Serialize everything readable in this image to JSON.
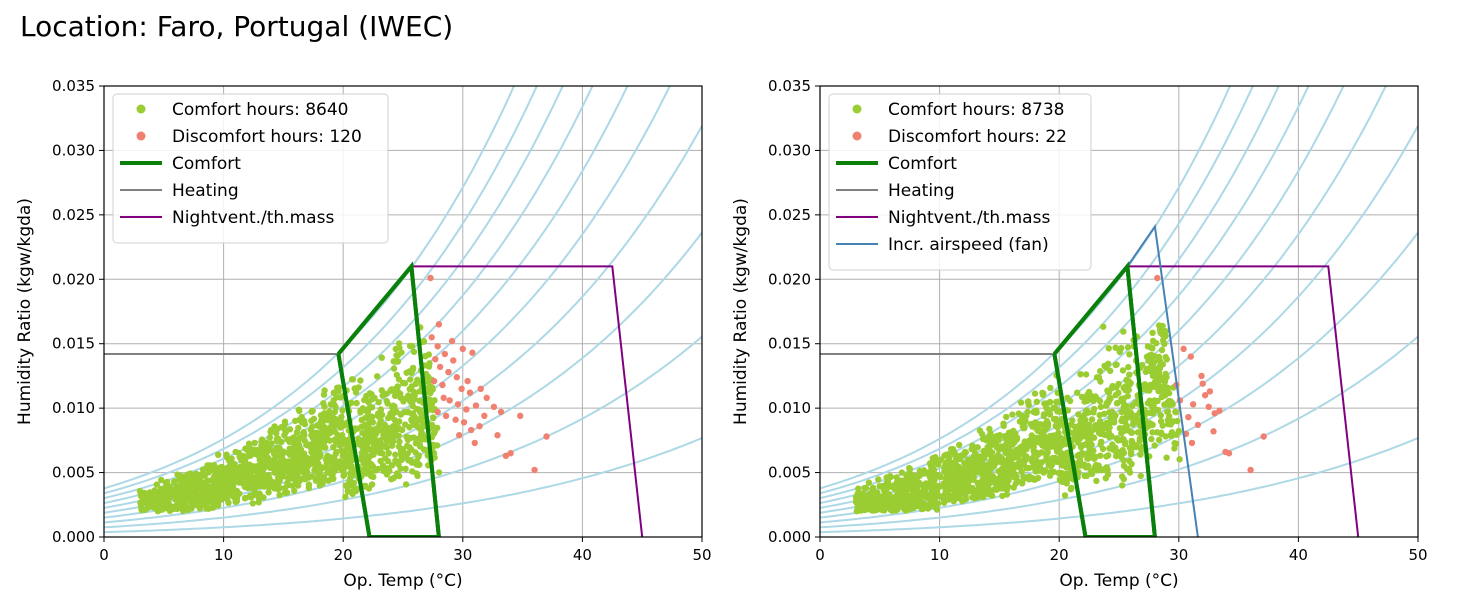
{
  "page": {
    "title": "Location: Faro, Portugal (IWEC)"
  },
  "colors": {
    "comfort_pts": "#9acd32",
    "discomfort_pts": "#f08070",
    "comfort_zone": "#0a800a",
    "heating": "#808080",
    "nightvent": "#800080",
    "fan": "#4682b4",
    "rh_curves": "#add8e6",
    "grid": "#b0b0b0"
  },
  "chart_data": [
    {
      "type": "scatter",
      "title": "",
      "xlabel": "Op. Temp (°C)",
      "ylabel": "Humidity Ratio (kgw/kgda)",
      "xlim": [
        0,
        50
      ],
      "ylim": [
        0,
        0.035
      ],
      "xticks": [
        "0",
        "10",
        "20",
        "30",
        "40",
        "50"
      ],
      "yticks": [
        "0.000",
        "0.005",
        "0.010",
        "0.015",
        "0.020",
        "0.025",
        "0.030",
        "0.035"
      ],
      "grid": true,
      "legend_position": "top-left",
      "legend": [
        {
          "label": "Comfort hours: 8640",
          "kind": "marker",
          "color": "comfort_pts"
        },
        {
          "label": "Discomfort hours: 120",
          "kind": "marker",
          "color": "discomfort_pts"
        },
        {
          "label": "Comfort",
          "kind": "line",
          "color": "comfort_zone",
          "width": 4
        },
        {
          "label": "Heating",
          "kind": "line",
          "color": "heating",
          "width": 2
        },
        {
          "label": "Nightvent./th.mass",
          "kind": "line",
          "color": "nightvent",
          "width": 2
        }
      ],
      "rh_curves_percent": [
        10,
        20,
        30,
        40,
        50,
        60,
        70,
        80,
        90,
        100
      ],
      "series": [
        {
          "name": "Heating",
          "color": "heating",
          "width": 2,
          "x": [
            0,
            19.6,
            22.2
          ],
          "y": [
            0.0142,
            0.0142,
            0
          ]
        },
        {
          "name": "Nightvent./th.mass",
          "color": "nightvent",
          "width": 2,
          "x": [
            25.7,
            42.5,
            45.0
          ],
          "y": [
            0.021,
            0.021,
            0
          ]
        },
        {
          "name": "Comfort",
          "color": "comfort_zone",
          "width": 4,
          "x": [
            19.6,
            25.7,
            28.0,
            22.2,
            19.6
          ],
          "y": [
            0.0142,
            0.021,
            0,
            0,
            0.0142
          ]
        }
      ],
      "comfort_cloud": {
        "temp_range": [
          3,
          29
        ],
        "humid_band": [
          0.002,
          0.017
        ],
        "count_drawn": 1500
      },
      "discomfort_points": [
        {
          "x": 27.3,
          "y": 0.0201
        },
        {
          "x": 28.0,
          "y": 0.0165
        },
        {
          "x": 27.4,
          "y": 0.0155
        },
        {
          "x": 27.9,
          "y": 0.0148
        },
        {
          "x": 28.5,
          "y": 0.0142
        },
        {
          "x": 29.2,
          "y": 0.0137
        },
        {
          "x": 30.0,
          "y": 0.0146
        },
        {
          "x": 30.8,
          "y": 0.0143
        },
        {
          "x": 28.1,
          "y": 0.0132
        },
        {
          "x": 28.8,
          "y": 0.0128
        },
        {
          "x": 29.5,
          "y": 0.0124
        },
        {
          "x": 27.6,
          "y": 0.0121
        },
        {
          "x": 28.3,
          "y": 0.0118
        },
        {
          "x": 29.9,
          "y": 0.0115
        },
        {
          "x": 30.6,
          "y": 0.0112
        },
        {
          "x": 31.5,
          "y": 0.0115
        },
        {
          "x": 32.0,
          "y": 0.0108
        },
        {
          "x": 28.9,
          "y": 0.0106
        },
        {
          "x": 29.6,
          "y": 0.0103
        },
        {
          "x": 30.3,
          "y": 0.0099
        },
        {
          "x": 31.1,
          "y": 0.0102
        },
        {
          "x": 32.6,
          "y": 0.0101
        },
        {
          "x": 27.9,
          "y": 0.0097
        },
        {
          "x": 28.6,
          "y": 0.0094
        },
        {
          "x": 29.4,
          "y": 0.0091
        },
        {
          "x": 30.1,
          "y": 0.0089
        },
        {
          "x": 31.8,
          "y": 0.0094
        },
        {
          "x": 33.2,
          "y": 0.0097
        },
        {
          "x": 34.8,
          "y": 0.0094
        },
        {
          "x": 30.7,
          "y": 0.0083
        },
        {
          "x": 31.4,
          "y": 0.0086
        },
        {
          "x": 32.9,
          "y": 0.0079
        },
        {
          "x": 31.0,
          "y": 0.0073
        },
        {
          "x": 34.0,
          "y": 0.0065
        },
        {
          "x": 33.6,
          "y": 0.0063
        },
        {
          "x": 36.0,
          "y": 0.0052
        },
        {
          "x": 37.0,
          "y": 0.0078
        },
        {
          "x": 29.7,
          "y": 0.0079
        },
        {
          "x": 28.4,
          "y": 0.0108
        },
        {
          "x": 29.1,
          "y": 0.0152
        },
        {
          "x": 27.7,
          "y": 0.0138
        },
        {
          "x": 30.4,
          "y": 0.0121
        }
      ]
    },
    {
      "type": "scatter",
      "title": "",
      "xlabel": "Op. Temp (°C)",
      "ylabel": "Humidity Ratio (kgw/kgda)",
      "xlim": [
        0,
        50
      ],
      "ylim": [
        0,
        0.035
      ],
      "xticks": [
        "0",
        "10",
        "20",
        "30",
        "40",
        "50"
      ],
      "yticks": [
        "0.000",
        "0.005",
        "0.010",
        "0.015",
        "0.020",
        "0.025",
        "0.030",
        "0.035"
      ],
      "grid": true,
      "legend_position": "top-left",
      "legend": [
        {
          "label": "Comfort hours: 8738",
          "kind": "marker",
          "color": "comfort_pts"
        },
        {
          "label": "Discomfort hours: 22",
          "kind": "marker",
          "color": "discomfort_pts"
        },
        {
          "label": "Comfort",
          "kind": "line",
          "color": "comfort_zone",
          "width": 4
        },
        {
          "label": "Heating",
          "kind": "line",
          "color": "heating",
          "width": 2
        },
        {
          "label": "Nightvent./th.mass",
          "kind": "line",
          "color": "nightvent",
          "width": 2
        },
        {
          "label": "Incr. airspeed (fan)",
          "kind": "line",
          "color": "fan",
          "width": 2
        }
      ],
      "rh_curves_percent": [
        10,
        20,
        30,
        40,
        50,
        60,
        70,
        80,
        90,
        100
      ],
      "series": [
        {
          "name": "Heating",
          "color": "heating",
          "width": 2,
          "x": [
            0,
            19.6,
            22.2
          ],
          "y": [
            0.0142,
            0.0142,
            0
          ]
        },
        {
          "name": "Nightvent./th.mass",
          "color": "nightvent",
          "width": 2,
          "x": [
            25.7,
            42.5,
            45.0
          ],
          "y": [
            0.021,
            0.021,
            0
          ]
        },
        {
          "name": "Incr. airspeed (fan)",
          "color": "fan",
          "width": 2,
          "x": [
            25.7,
            28.0,
            31.6
          ],
          "y": [
            0.021,
            0.0241,
            0
          ]
        },
        {
          "name": "Comfort",
          "color": "comfort_zone",
          "width": 4,
          "x": [
            19.6,
            25.7,
            28.0,
            22.2,
            19.6
          ],
          "y": [
            0.0142,
            0.021,
            0,
            0,
            0.0142
          ]
        }
      ],
      "comfort_cloud": {
        "temp_range": [
          3,
          31
        ],
        "humid_band": [
          0.002,
          0.017
        ],
        "count_drawn": 1500
      },
      "discomfort_points": [
        {
          "x": 28.2,
          "y": 0.0201
        },
        {
          "x": 30.4,
          "y": 0.0146
        },
        {
          "x": 31.0,
          "y": 0.014
        },
        {
          "x": 32.0,
          "y": 0.0119
        },
        {
          "x": 32.6,
          "y": 0.0113
        },
        {
          "x": 30.1,
          "y": 0.0106
        },
        {
          "x": 31.2,
          "y": 0.0103
        },
        {
          "x": 32.5,
          "y": 0.0101
        },
        {
          "x": 32.9,
          "y": 0.0082
        },
        {
          "x": 31.1,
          "y": 0.0073
        },
        {
          "x": 33.9,
          "y": 0.0066
        },
        {
          "x": 34.2,
          "y": 0.0065
        },
        {
          "x": 36.0,
          "y": 0.0052
        },
        {
          "x": 37.1,
          "y": 0.0078
        },
        {
          "x": 30.8,
          "y": 0.0093
        },
        {
          "x": 33.0,
          "y": 0.0096
        },
        {
          "x": 31.6,
          "y": 0.0087
        },
        {
          "x": 29.8,
          "y": 0.0118
        },
        {
          "x": 32.2,
          "y": 0.011
        },
        {
          "x": 30.6,
          "y": 0.008
        },
        {
          "x": 33.4,
          "y": 0.0098
        },
        {
          "x": 31.9,
          "y": 0.0125
        }
      ]
    }
  ]
}
